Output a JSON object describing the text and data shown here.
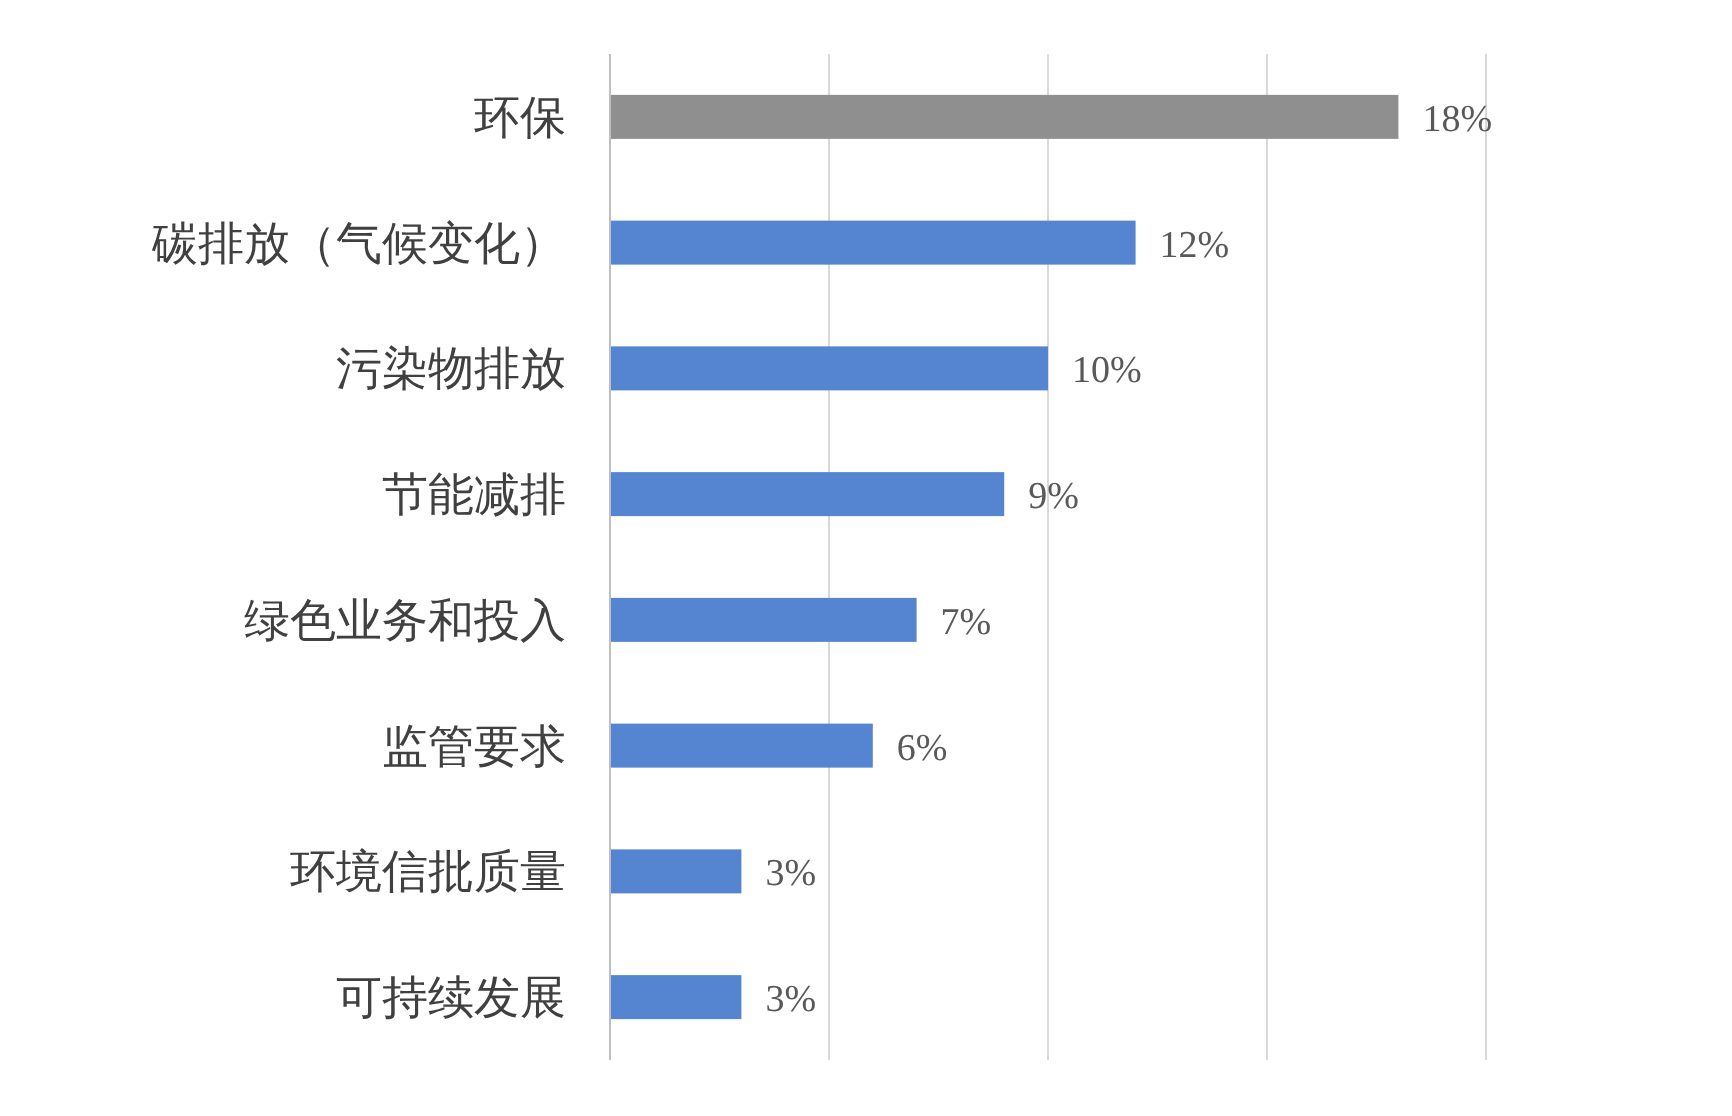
{
  "chart_data": {
    "type": "bar",
    "orientation": "horizontal",
    "categories": [
      "环保",
      "碳排放（气候变化）",
      "污染物排放",
      "节能减排",
      "绿色业务和投入",
      "监管要求",
      "环境信批质量",
      "可持续发展"
    ],
    "values": [
      18,
      12,
      10,
      9,
      7,
      6,
      3,
      3
    ],
    "colors": [
      "#8f8f8f",
      "#5585d1",
      "#5585d1",
      "#5585d1",
      "#5585d1",
      "#5585d1",
      "#5585d1",
      "#5585d1"
    ],
    "value_labels": [
      "18%",
      "12%",
      "10%",
      "9%",
      "7%",
      "6%",
      "3%",
      "3%"
    ],
    "xlim": [
      0,
      20
    ],
    "xticks": [
      {
        "value": 0,
        "label": null
      },
      {
        "value": 5,
        "label": null
      },
      {
        "value": 10,
        "label": null
      },
      {
        "value": 15,
        "label": null
      },
      {
        "value": 20,
        "label": null
      }
    ],
    "grid": "x",
    "tick_labels": "y"
  }
}
